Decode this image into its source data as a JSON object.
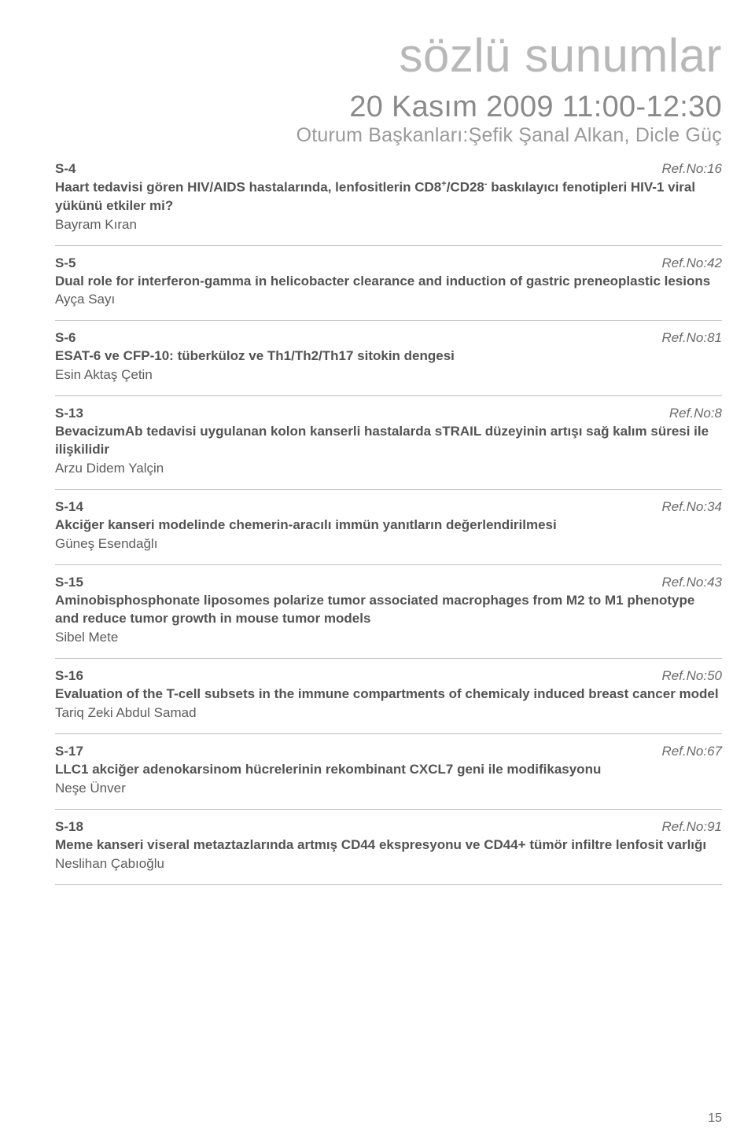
{
  "title": "sözlü sunumlar",
  "dateLine": "20 Kasım 2009 11:00-12:30",
  "chairsLine": "Oturum Başkanları:Şefik Şanal Alkan, Dicle Güç",
  "pageNumber": "15",
  "colors": {
    "title": "#b8b8b8",
    "subtitle": "#8a8a8a",
    "chairs": "#9a9a9a",
    "text": "#535353",
    "divider": "#bdbdbd",
    "background": "#ffffff"
  },
  "entries": [
    {
      "code": "S-4",
      "ref": "Ref.No:16",
      "desc_pre": "Haart tedavisi gören HIV/AIDS hastalarında, lenfositlerin CD8",
      "desc_sup1": "+",
      "desc_mid": "/CD28",
      "desc_sup2": "-",
      "desc_post": " baskılayıcı fenotipleri HIV-1 viral yükünü etkiler mi?",
      "author": "Bayram Kıran"
    },
    {
      "code": "S-5",
      "ref": "Ref.No:42",
      "desc": "Dual role for interferon-gamma in helicobacter clearance and induction of gastric preneoplastic lesions",
      "author": "Ayça Sayı"
    },
    {
      "code": "S-6",
      "ref": "Ref.No:81",
      "desc": "ESAT-6 ve CFP-10: tüberküloz ve Th1/Th2/Th17 sitokin dengesi",
      "author": "Esin Aktaş Çetin"
    },
    {
      "code": "S-13",
      "ref": "Ref.No:8",
      "desc": "BevacizumAb tedavisi uygulanan kolon kanserli hastalarda sTRAIL düzeyinin artışı sağ kalım süresi ile ilişkilidir",
      "author": "Arzu Didem Yalçin"
    },
    {
      "code": "S-14",
      "ref": "Ref.No:34",
      "desc": "Akciğer kanseri modelinde chemerin-aracılı immün yanıtların değerlendirilmesi",
      "author": "Güneş Esendağlı"
    },
    {
      "code": "S-15",
      "ref": "Ref.No:43",
      "desc": "Aminobisphosphonate liposomes polarize tumor associated macrophages from M2 to M1 phenotype and reduce tumor growth in mouse tumor models",
      "author": "Sibel Mete"
    },
    {
      "code": "S-16",
      "ref": "Ref.No:50",
      "desc": "Evaluation of the T-cell subsets in the immune compartments of chemicaly induced breast cancer model",
      "author": "Tariq Zeki Abdul Samad"
    },
    {
      "code": "S-17",
      "ref": "Ref.No:67",
      "desc": "LLC1 akciğer adenokarsinom hücrelerinin rekombinant CXCL7 geni ile modifikasyonu",
      "author": "Neşe Ünver"
    },
    {
      "code": "S-18",
      "ref": "Ref.No:91",
      "desc": "Meme kanseri viseral metaztazlarında artmış CD44 ekspresyonu ve CD44+ tümör infiltre lenfosit varlığı",
      "author": "Neslihan Çabıoğlu"
    }
  ]
}
